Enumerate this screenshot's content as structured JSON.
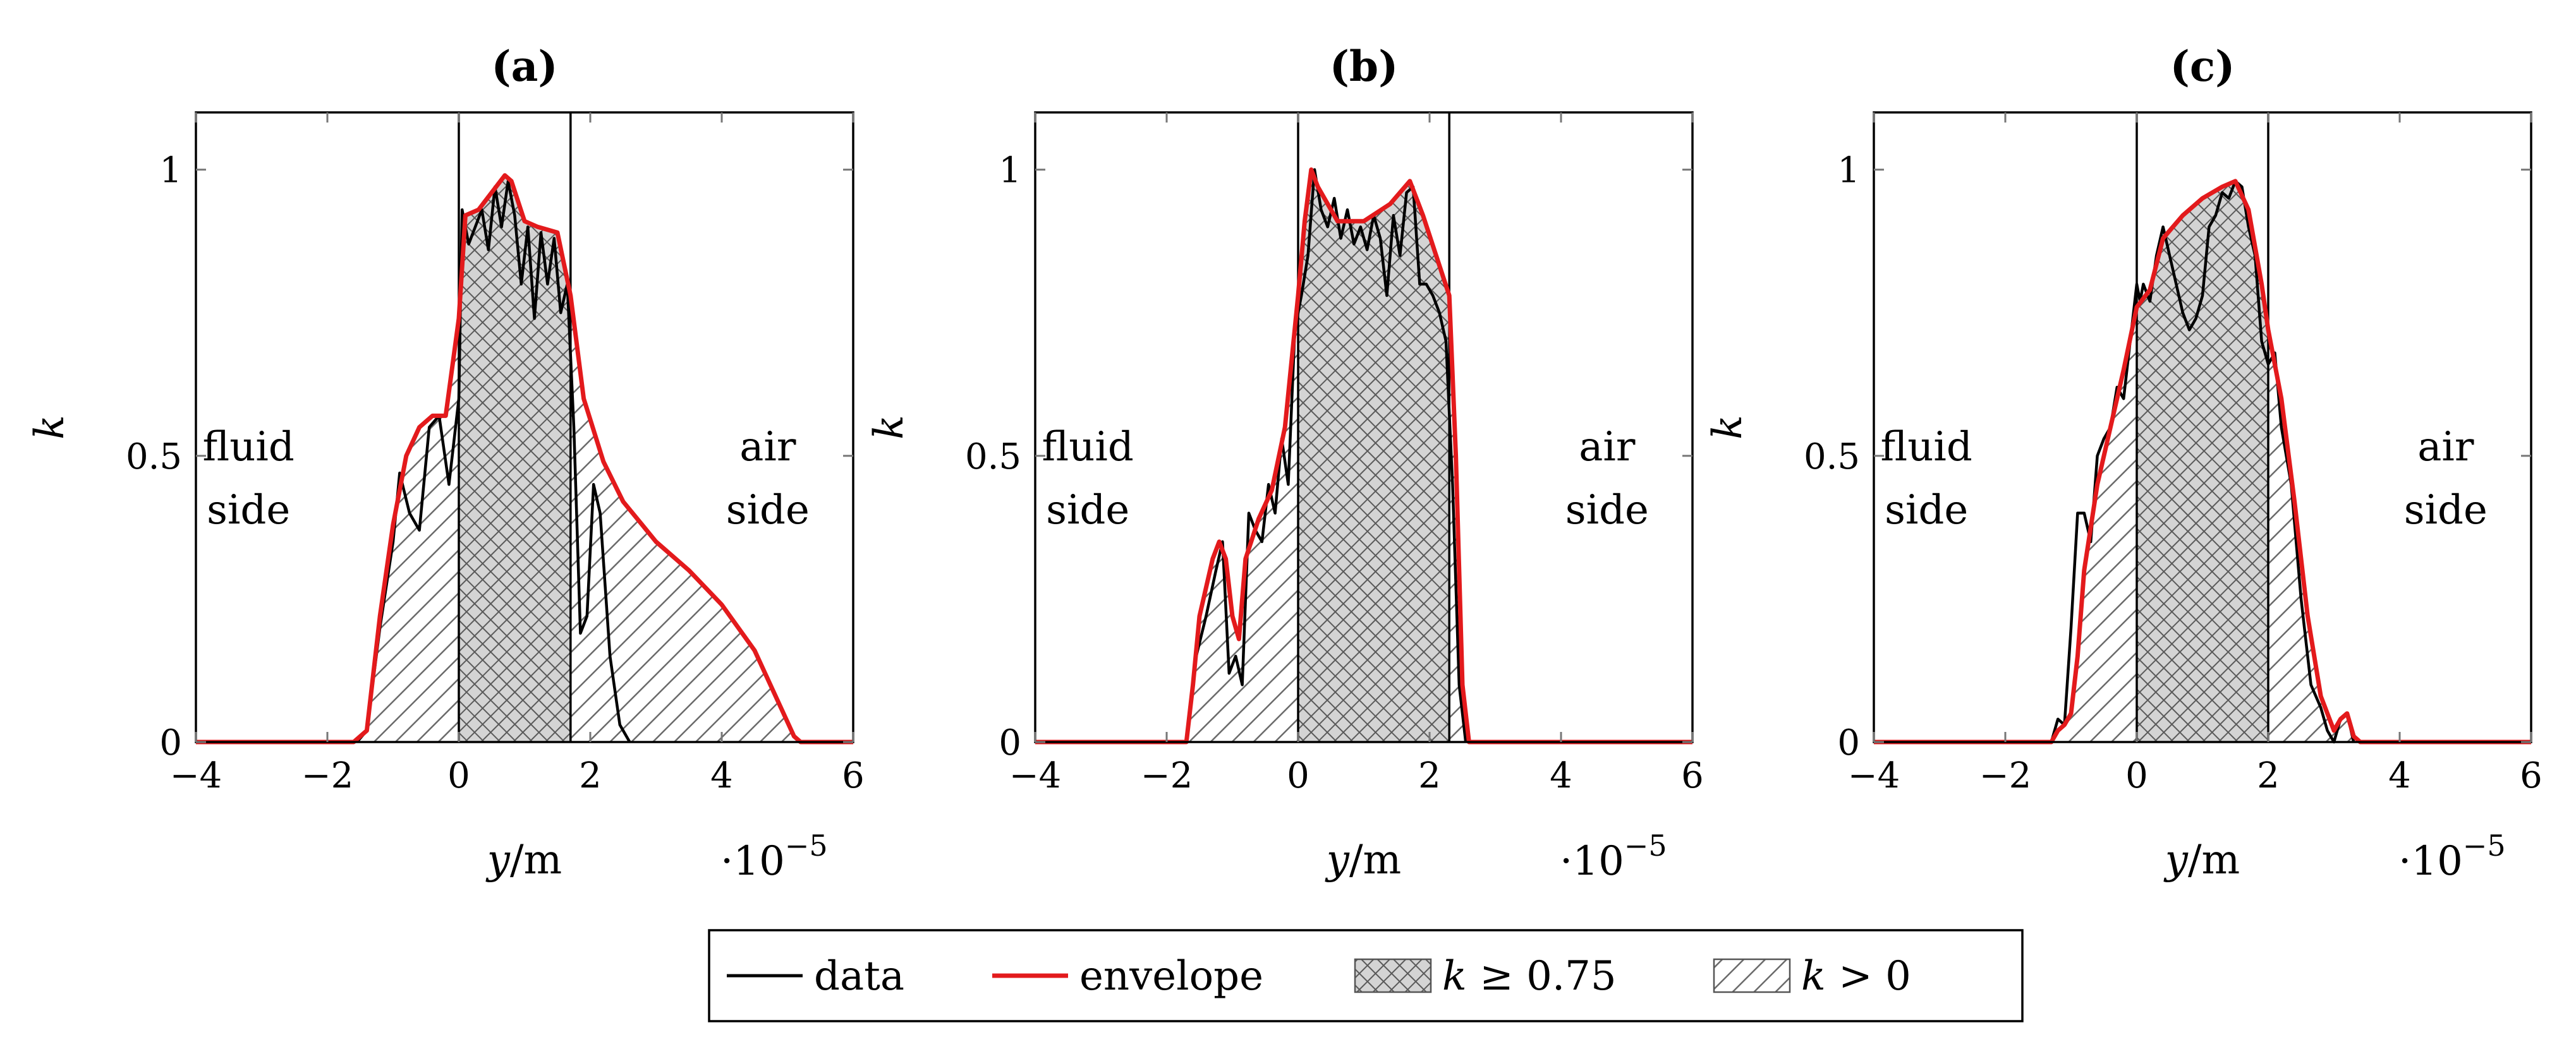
{
  "chart_data": [
    {
      "type": "area",
      "title": "(a)",
      "xlabel": "y/m",
      "ylabel": "k",
      "x_scale_label": "·10",
      "x_scale_exponent": "−5",
      "xlim": [
        -4,
        6
      ],
      "ylim": [
        0,
        1.1
      ],
      "xticks": [
        -4,
        -2,
        0,
        2,
        4,
        6
      ],
      "xtick_labels": [
        "−4",
        "−2",
        "0",
        "2",
        "4",
        "6"
      ],
      "yticks": [
        0,
        0.5,
        1
      ],
      "ytick_labels": [
        "0",
        "0.5",
        "1"
      ],
      "vlines": [
        0,
        1.7
      ],
      "annotations": [
        {
          "lines": [
            "fluid",
            "side"
          ],
          "x": -3.2,
          "y": 0.45
        },
        {
          "lines": [
            "air",
            "side"
          ],
          "x": 4.7,
          "y": 0.45
        }
      ],
      "series": [
        {
          "name": "envelope",
          "color": "#e31a1c",
          "x": [
            -4,
            -1.6,
            -1.4,
            -1.2,
            -1.0,
            -0.8,
            -0.6,
            -0.4,
            -0.2,
            0.0,
            0.1,
            0.3,
            0.5,
            0.7,
            0.8,
            1.0,
            1.2,
            1.5,
            1.7,
            1.9,
            2.2,
            2.5,
            3.0,
            3.5,
            4.0,
            4.5,
            4.9,
            5.1,
            5.2,
            6
          ],
          "y": [
            0,
            0,
            0.02,
            0.22,
            0.38,
            0.5,
            0.55,
            0.57,
            0.57,
            0.74,
            0.92,
            0.93,
            0.96,
            0.99,
            0.98,
            0.91,
            0.9,
            0.89,
            0.78,
            0.6,
            0.49,
            0.42,
            0.35,
            0.3,
            0.24,
            0.16,
            0.06,
            0.01,
            0,
            0
          ]
        },
        {
          "name": "data",
          "color": "#000000",
          "x": [
            -1.55,
            -1.4,
            -1.2,
            -1.0,
            -0.9,
            -0.75,
            -0.6,
            -0.45,
            -0.3,
            -0.15,
            -0.05,
            0.0,
            0.05,
            0.15,
            0.25,
            0.35,
            0.45,
            0.55,
            0.65,
            0.75,
            0.85,
            0.95,
            1.05,
            1.15,
            1.25,
            1.35,
            1.45,
            1.55,
            1.65,
            1.75,
            1.85,
            1.95,
            2.05,
            2.15,
            2.3,
            2.45,
            2.6
          ],
          "y": [
            0,
            0.02,
            0.2,
            0.35,
            0.47,
            0.4,
            0.37,
            0.55,
            0.57,
            0.45,
            0.55,
            0.6,
            0.93,
            0.87,
            0.9,
            0.93,
            0.86,
            0.97,
            0.9,
            0.98,
            0.92,
            0.8,
            0.9,
            0.74,
            0.89,
            0.8,
            0.88,
            0.75,
            0.8,
            0.55,
            0.19,
            0.22,
            0.45,
            0.4,
            0.15,
            0.03,
            0
          ]
        }
      ]
    },
    {
      "type": "area",
      "title": "(b)",
      "xlabel": "y/m",
      "ylabel": "k",
      "x_scale_label": "·10",
      "x_scale_exponent": "−5",
      "xlim": [
        -4,
        6
      ],
      "ylim": [
        0,
        1.1
      ],
      "xticks": [
        -4,
        -2,
        0,
        2,
        4,
        6
      ],
      "xtick_labels": [
        "−4",
        "−2",
        "0",
        "2",
        "4",
        "6"
      ],
      "yticks": [
        0,
        0.5,
        1
      ],
      "ytick_labels": [
        "0",
        "0.5",
        "1"
      ],
      "vlines": [
        0,
        2.3
      ],
      "annotations": [
        {
          "lines": [
            "fluid",
            "side"
          ],
          "x": -3.2,
          "y": 0.45
        },
        {
          "lines": [
            "air",
            "side"
          ],
          "x": 4.7,
          "y": 0.45
        }
      ],
      "series": [
        {
          "name": "envelope",
          "color": "#e31a1c",
          "x": [
            -4,
            -1.7,
            -1.6,
            -1.5,
            -1.3,
            -1.2,
            -1.1,
            -1.0,
            -0.9,
            -0.8,
            -0.6,
            -0.4,
            -0.2,
            0.0,
            0.1,
            0.2,
            0.3,
            0.6,
            1.0,
            1.4,
            1.7,
            1.9,
            2.1,
            2.3,
            2.4,
            2.5,
            2.6,
            6
          ],
          "y": [
            0,
            0,
            0.1,
            0.22,
            0.32,
            0.35,
            0.32,
            0.22,
            0.18,
            0.32,
            0.39,
            0.44,
            0.55,
            0.78,
            0.91,
            1.0,
            0.97,
            0.91,
            0.91,
            0.94,
            0.98,
            0.92,
            0.85,
            0.78,
            0.5,
            0.1,
            0,
            0
          ]
        },
        {
          "name": "data",
          "color": "#000000",
          "x": [
            -1.7,
            -1.55,
            -1.4,
            -1.25,
            -1.15,
            -1.05,
            -0.95,
            -0.85,
            -0.75,
            -0.65,
            -0.55,
            -0.45,
            -0.35,
            -0.25,
            -0.15,
            -0.05,
            0.05,
            0.15,
            0.25,
            0.35,
            0.45,
            0.55,
            0.65,
            0.75,
            0.85,
            0.95,
            1.05,
            1.15,
            1.25,
            1.35,
            1.45,
            1.55,
            1.65,
            1.75,
            1.85,
            1.95,
            2.05,
            2.15,
            2.25,
            2.35,
            2.45,
            2.55
          ],
          "y": [
            0,
            0.15,
            0.22,
            0.3,
            0.35,
            0.12,
            0.15,
            0.1,
            0.4,
            0.37,
            0.35,
            0.45,
            0.4,
            0.53,
            0.45,
            0.72,
            0.78,
            0.85,
            1.0,
            0.93,
            0.9,
            0.95,
            0.88,
            0.93,
            0.87,
            0.9,
            0.86,
            0.92,
            0.88,
            0.78,
            0.92,
            0.85,
            0.96,
            0.97,
            0.8,
            0.8,
            0.78,
            0.75,
            0.7,
            0.45,
            0.1,
            0
          ]
        }
      ]
    },
    {
      "type": "area",
      "title": "(c)",
      "xlabel": "y/m",
      "ylabel": "k",
      "x_scale_label": "·10",
      "x_scale_exponent": "−5",
      "xlim": [
        -4,
        6
      ],
      "ylim": [
        0,
        1.1
      ],
      "xticks": [
        -4,
        -2,
        0,
        2,
        4,
        6
      ],
      "xtick_labels": [
        "−4",
        "−2",
        "0",
        "2",
        "4",
        "6"
      ],
      "yticks": [
        0,
        0.5,
        1
      ],
      "ytick_labels": [
        "0",
        "0.5",
        "1"
      ],
      "vlines": [
        0,
        2.0
      ],
      "annotations": [
        {
          "lines": [
            "fluid",
            "side"
          ],
          "x": -3.2,
          "y": 0.45
        },
        {
          "lines": [
            "air",
            "side"
          ],
          "x": 4.7,
          "y": 0.45
        }
      ],
      "series": [
        {
          "name": "envelope",
          "color": "#e31a1c",
          "x": [
            -4,
            -1.3,
            -1.2,
            -1.1,
            -1.0,
            -0.9,
            -0.8,
            -0.6,
            -0.4,
            -0.2,
            0.0,
            0.2,
            0.4,
            0.7,
            1.0,
            1.3,
            1.5,
            1.7,
            1.9,
            2.0,
            2.2,
            2.4,
            2.6,
            2.8,
            3.0,
            3.1,
            3.2,
            3.3,
            3.4,
            6
          ],
          "y": [
            0,
            0,
            0.02,
            0.03,
            0.05,
            0.15,
            0.3,
            0.45,
            0.55,
            0.65,
            0.76,
            0.79,
            0.88,
            0.92,
            0.95,
            0.97,
            0.98,
            0.93,
            0.8,
            0.72,
            0.6,
            0.42,
            0.22,
            0.08,
            0.02,
            0.04,
            0.05,
            0.01,
            0,
            0
          ]
        },
        {
          "name": "data",
          "color": "#000000",
          "x": [
            -1.3,
            -1.2,
            -1.1,
            -1.0,
            -0.9,
            -0.8,
            -0.7,
            -0.6,
            -0.5,
            -0.4,
            -0.3,
            -0.2,
            -0.1,
            0.0,
            0.05,
            0.1,
            0.2,
            0.3,
            0.4,
            0.5,
            0.6,
            0.7,
            0.8,
            0.9,
            1.0,
            1.1,
            1.2,
            1.3,
            1.4,
            1.5,
            1.6,
            1.7,
            1.8,
            1.9,
            2.0,
            2.1,
            2.2,
            2.35,
            2.5,
            2.65,
            2.8,
            2.9,
            3.0,
            3.1,
            3.2,
            3.3
          ],
          "y": [
            0,
            0.04,
            0.03,
            0.2,
            0.4,
            0.4,
            0.35,
            0.5,
            0.53,
            0.55,
            0.62,
            0.6,
            0.7,
            0.8,
            0.77,
            0.8,
            0.77,
            0.85,
            0.9,
            0.85,
            0.8,
            0.75,
            0.72,
            0.74,
            0.78,
            0.9,
            0.92,
            0.96,
            0.95,
            0.98,
            0.97,
            0.9,
            0.85,
            0.7,
            0.66,
            0.68,
            0.55,
            0.45,
            0.25,
            0.1,
            0.06,
            0.02,
            0.0,
            0.04,
            0.05,
            0.0
          ]
        }
      ]
    }
  ],
  "legend": {
    "items": [
      {
        "label": "data",
        "kind": "line",
        "color": "#000000"
      },
      {
        "label": "envelope",
        "kind": "line",
        "color": "#e31a1c"
      },
      {
        "label": "k ≥ 0.75",
        "kind": "crosshatch"
      },
      {
        "label": "k > 0",
        "kind": "hatch"
      }
    ]
  }
}
